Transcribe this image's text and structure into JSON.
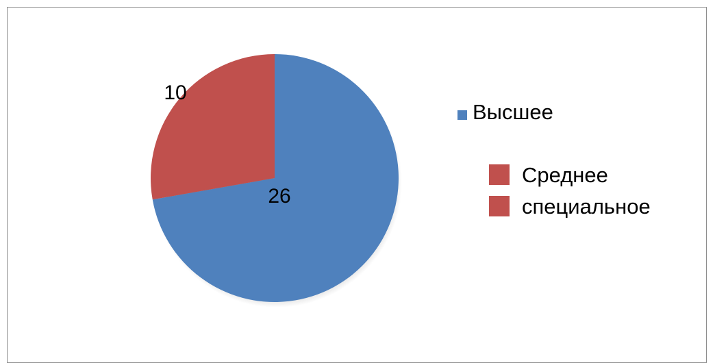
{
  "chart_data": {
    "type": "pie",
    "categories": [
      "Высшее",
      "Среднее специальное"
    ],
    "values": [
      26,
      10
    ],
    "colors": [
      "#4f81bd",
      "#c0504d"
    ],
    "data_labels": [
      "26",
      "10"
    ],
    "legend": {
      "position": "right",
      "entries": [
        {
          "label": "Высшее",
          "color": "#4f81bd"
        },
        {
          "label_lines": [
            "Среднее",
            "специальное"
          ],
          "color": "#c0504d"
        }
      ]
    }
  }
}
